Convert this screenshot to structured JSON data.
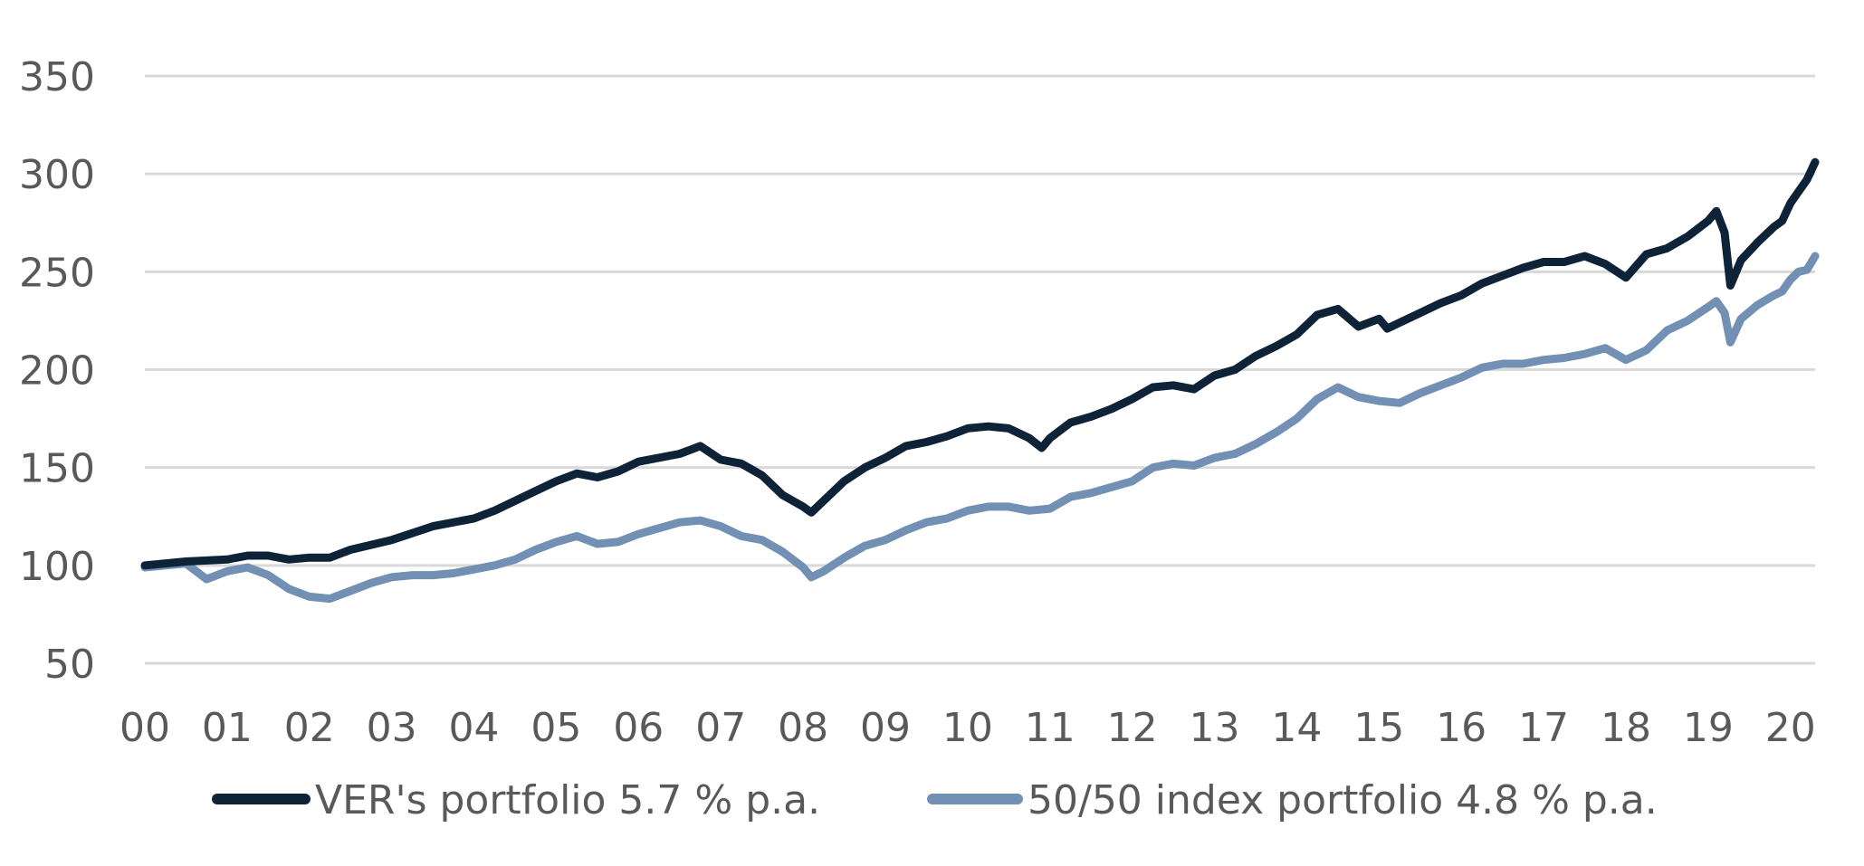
{
  "chart_data": {
    "type": "line",
    "title": "",
    "xlabel": "",
    "ylabel": "",
    "ylim": [
      50,
      350
    ],
    "xlim": [
      0,
      20.3
    ],
    "y_ticks": [
      "50",
      "100",
      "150",
      "200",
      "250",
      "300",
      "350"
    ],
    "x_ticks": [
      "00",
      "01",
      "02",
      "03",
      "04",
      "05",
      "06",
      "07",
      "08",
      "09",
      "10",
      "11",
      "12",
      "13",
      "14",
      "15",
      "16",
      "17",
      "18",
      "19",
      "20"
    ],
    "grid": true,
    "legend_position": "bottom",
    "series": [
      {
        "name": "VER's portfolio 5.7 % p.a.",
        "color": "#0e2338",
        "points": [
          [
            0.0,
            100
          ],
          [
            0.5,
            102
          ],
          [
            1.0,
            103
          ],
          [
            1.25,
            105
          ],
          [
            1.5,
            105
          ],
          [
            1.75,
            103
          ],
          [
            2.0,
            104
          ],
          [
            2.25,
            104
          ],
          [
            2.5,
            108
          ],
          [
            3.0,
            113
          ],
          [
            3.5,
            120
          ],
          [
            4.0,
            124
          ],
          [
            4.25,
            128
          ],
          [
            4.5,
            133
          ],
          [
            4.75,
            138
          ],
          [
            5.0,
            143
          ],
          [
            5.25,
            147
          ],
          [
            5.5,
            145
          ],
          [
            5.75,
            148
          ],
          [
            6.0,
            153
          ],
          [
            6.5,
            157
          ],
          [
            6.75,
            161
          ],
          [
            7.0,
            154
          ],
          [
            7.25,
            152
          ],
          [
            7.5,
            146
          ],
          [
            7.75,
            136
          ],
          [
            8.0,
            130
          ],
          [
            8.1,
            127
          ],
          [
            8.25,
            133
          ],
          [
            8.5,
            143
          ],
          [
            8.75,
            150
          ],
          [
            9.0,
            155
          ],
          [
            9.25,
            161
          ],
          [
            9.5,
            163
          ],
          [
            9.75,
            166
          ],
          [
            10.0,
            170
          ],
          [
            10.25,
            171
          ],
          [
            10.5,
            170
          ],
          [
            10.75,
            165
          ],
          [
            10.9,
            160
          ],
          [
            11.0,
            165
          ],
          [
            11.25,
            173
          ],
          [
            11.5,
            176
          ],
          [
            11.75,
            180
          ],
          [
            12.0,
            185
          ],
          [
            12.25,
            191
          ],
          [
            12.5,
            192
          ],
          [
            12.75,
            190
          ],
          [
            13.0,
            197
          ],
          [
            13.25,
            200
          ],
          [
            13.5,
            207
          ],
          [
            13.75,
            212
          ],
          [
            14.0,
            218
          ],
          [
            14.25,
            228
          ],
          [
            14.5,
            231
          ],
          [
            14.75,
            222
          ],
          [
            15.0,
            226
          ],
          [
            15.1,
            221
          ],
          [
            15.25,
            224
          ],
          [
            15.5,
            229
          ],
          [
            15.75,
            234
          ],
          [
            16.0,
            238
          ],
          [
            16.25,
            244
          ],
          [
            16.5,
            248
          ],
          [
            16.75,
            252
          ],
          [
            17.0,
            255
          ],
          [
            17.25,
            255
          ],
          [
            17.5,
            258
          ],
          [
            17.75,
            254
          ],
          [
            18.0,
            247
          ],
          [
            18.25,
            259
          ],
          [
            18.5,
            262
          ],
          [
            18.75,
            268
          ],
          [
            19.0,
            276
          ],
          [
            19.1,
            281
          ],
          [
            19.2,
            270
          ],
          [
            19.27,
            243
          ],
          [
            19.4,
            256
          ],
          [
            19.6,
            265
          ],
          [
            19.8,
            273
          ],
          [
            19.9,
            276
          ],
          [
            20.0,
            285
          ],
          [
            20.1,
            291
          ],
          [
            20.2,
            297
          ],
          [
            20.3,
            306
          ]
        ]
      },
      {
        "name": "50/50 index portfolio 4.8 % p.a.",
        "color": "#7190b4",
        "points": [
          [
            0.0,
            99
          ],
          [
            0.25,
            100
          ],
          [
            0.5,
            101
          ],
          [
            0.75,
            93
          ],
          [
            1.0,
            97
          ],
          [
            1.25,
            99
          ],
          [
            1.5,
            95
          ],
          [
            1.75,
            88
          ],
          [
            2.0,
            84
          ],
          [
            2.25,
            83
          ],
          [
            2.5,
            87
          ],
          [
            2.75,
            91
          ],
          [
            3.0,
            94
          ],
          [
            3.25,
            95
          ],
          [
            3.5,
            95
          ],
          [
            3.75,
            96
          ],
          [
            4.0,
            98
          ],
          [
            4.25,
            100
          ],
          [
            4.5,
            103
          ],
          [
            4.75,
            108
          ],
          [
            5.0,
            112
          ],
          [
            5.25,
            115
          ],
          [
            5.5,
            111
          ],
          [
            5.75,
            112
          ],
          [
            6.0,
            116
          ],
          [
            6.25,
            119
          ],
          [
            6.5,
            122
          ],
          [
            6.75,
            123
          ],
          [
            7.0,
            120
          ],
          [
            7.25,
            115
          ],
          [
            7.5,
            113
          ],
          [
            7.75,
            107
          ],
          [
            8.0,
            99
          ],
          [
            8.1,
            94
          ],
          [
            8.25,
            97
          ],
          [
            8.5,
            104
          ],
          [
            8.75,
            110
          ],
          [
            9.0,
            113
          ],
          [
            9.25,
            118
          ],
          [
            9.5,
            122
          ],
          [
            9.75,
            124
          ],
          [
            10.0,
            128
          ],
          [
            10.25,
            130
          ],
          [
            10.5,
            130
          ],
          [
            10.75,
            128
          ],
          [
            11.0,
            129
          ],
          [
            11.25,
            135
          ],
          [
            11.5,
            137
          ],
          [
            11.75,
            140
          ],
          [
            12.0,
            143
          ],
          [
            12.25,
            150
          ],
          [
            12.5,
            152
          ],
          [
            12.75,
            151
          ],
          [
            13.0,
            155
          ],
          [
            13.25,
            157
          ],
          [
            13.5,
            162
          ],
          [
            13.75,
            168
          ],
          [
            14.0,
            175
          ],
          [
            14.25,
            185
          ],
          [
            14.5,
            191
          ],
          [
            14.75,
            186
          ],
          [
            15.0,
            184
          ],
          [
            15.25,
            183
          ],
          [
            15.5,
            188
          ],
          [
            15.75,
            192
          ],
          [
            16.0,
            196
          ],
          [
            16.25,
            201
          ],
          [
            16.5,
            203
          ],
          [
            16.75,
            203
          ],
          [
            17.0,
            205
          ],
          [
            17.25,
            206
          ],
          [
            17.5,
            208
          ],
          [
            17.75,
            211
          ],
          [
            18.0,
            205
          ],
          [
            18.25,
            210
          ],
          [
            18.5,
            220
          ],
          [
            18.75,
            225
          ],
          [
            19.0,
            232
          ],
          [
            19.1,
            235
          ],
          [
            19.2,
            229
          ],
          [
            19.27,
            214
          ],
          [
            19.4,
            226
          ],
          [
            19.6,
            233
          ],
          [
            19.8,
            238
          ],
          [
            19.9,
            240
          ],
          [
            20.0,
            246
          ],
          [
            20.1,
            250
          ],
          [
            20.2,
            251
          ],
          [
            20.3,
            258
          ]
        ]
      }
    ]
  }
}
